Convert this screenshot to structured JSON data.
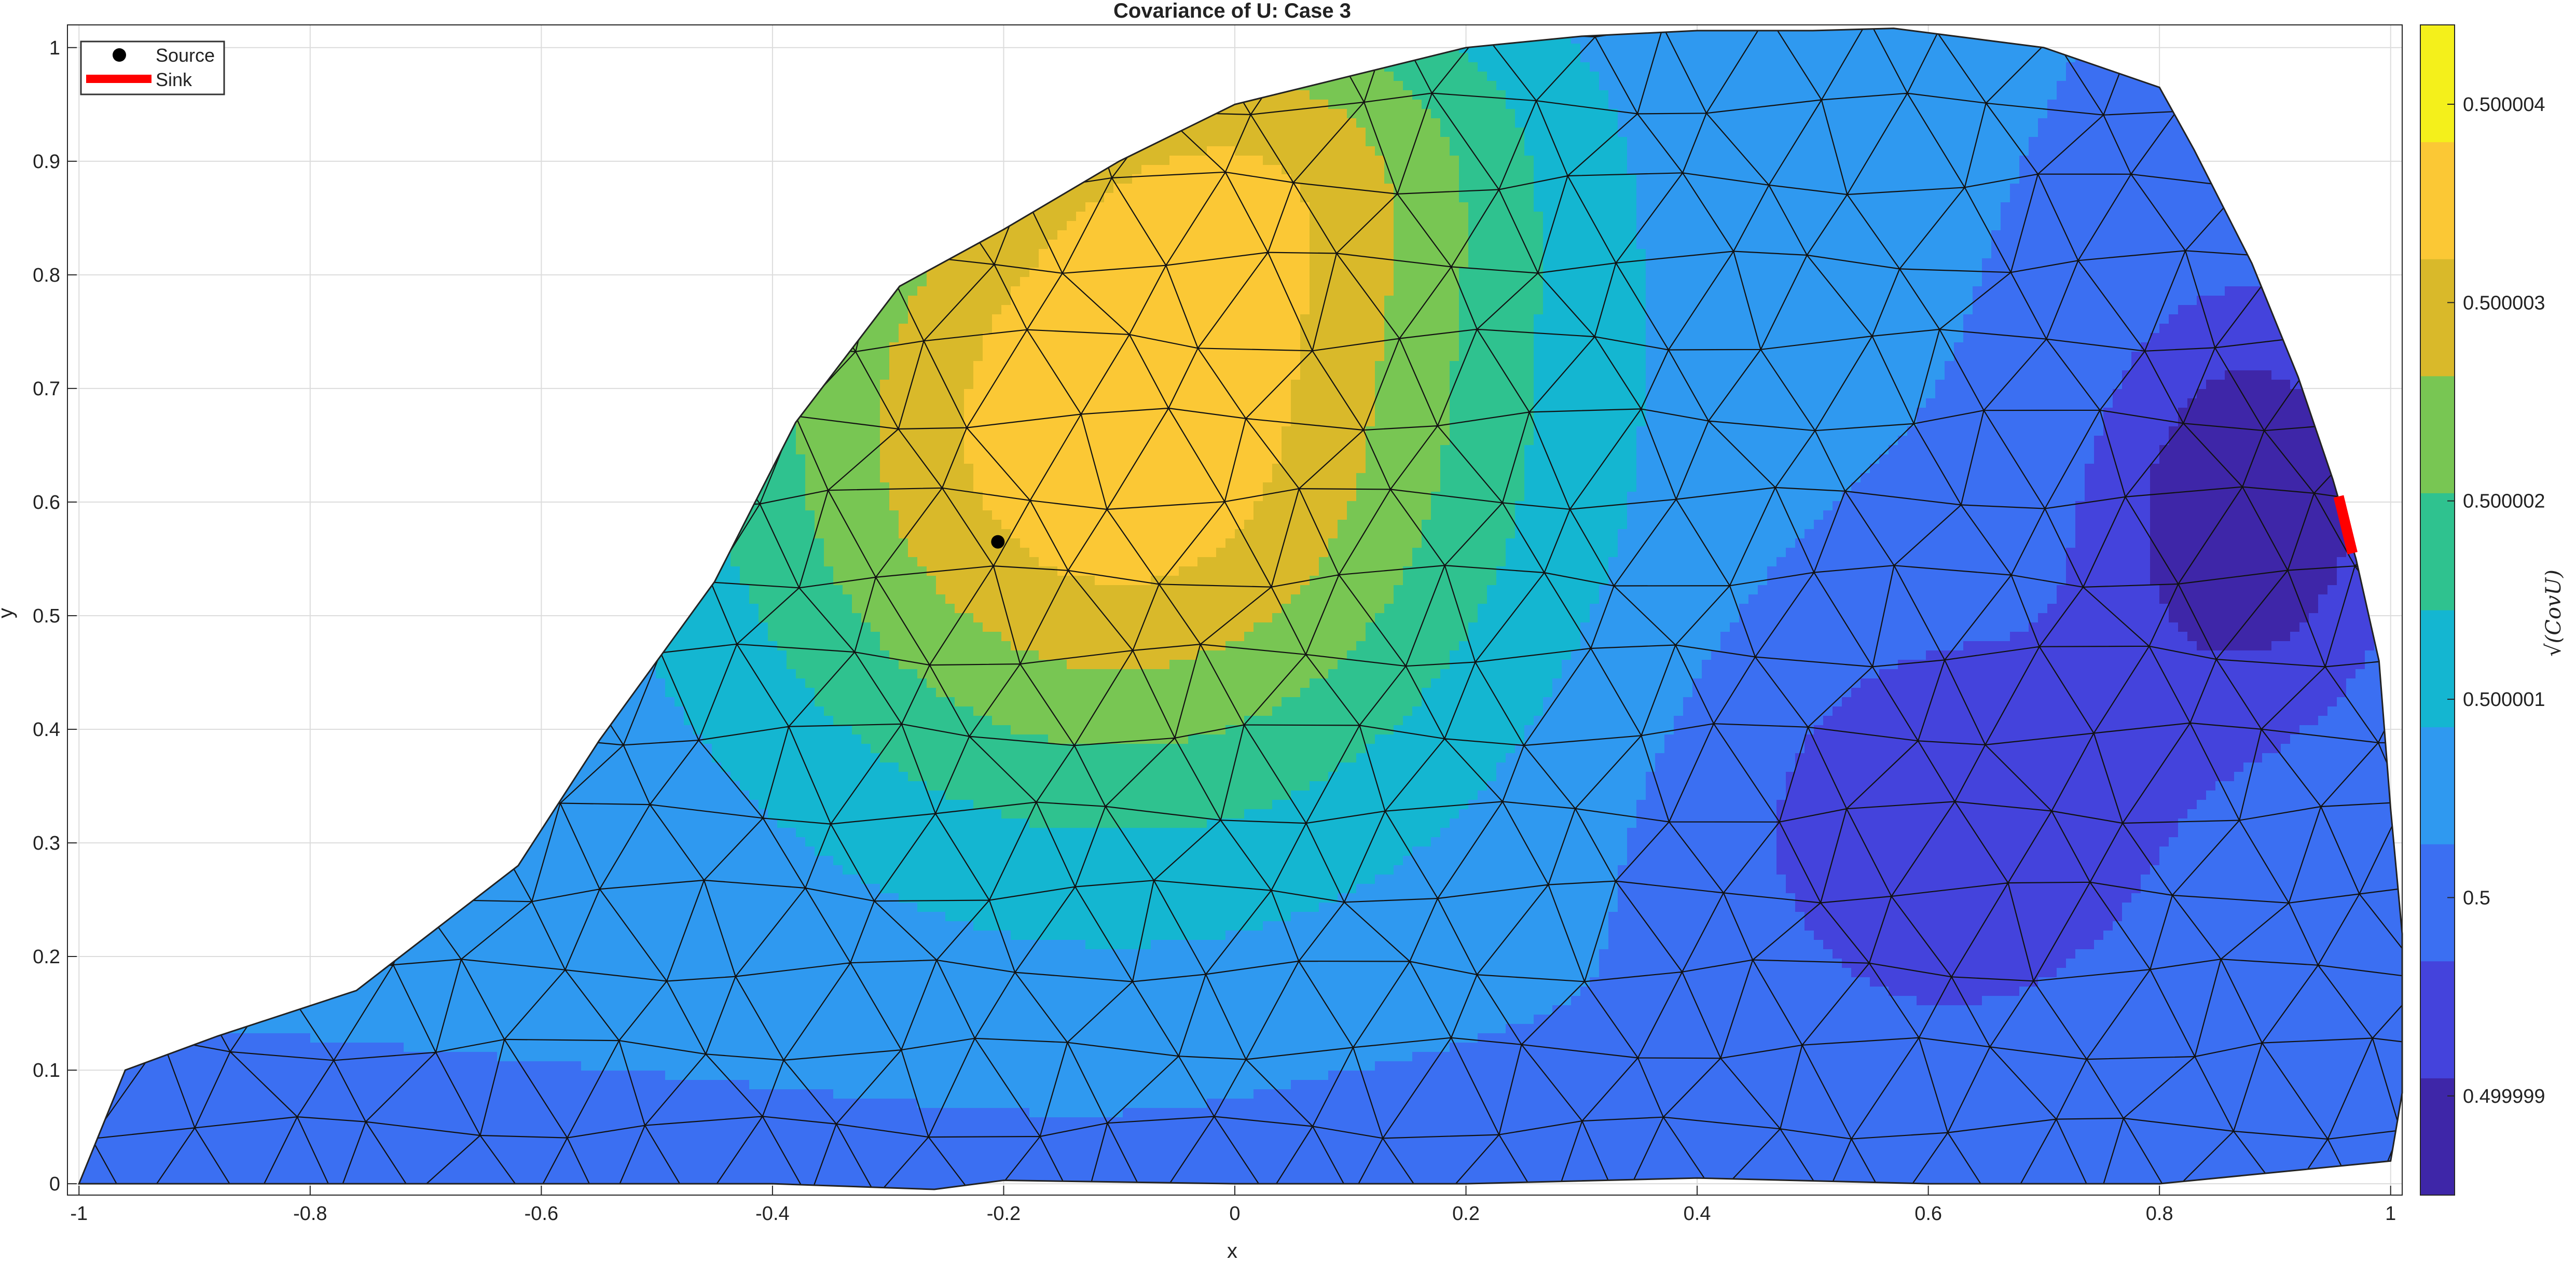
{
  "chart_data": {
    "type": "contour",
    "title": "Covariance of U: Case 3",
    "xlabel": "x",
    "ylabel": "y",
    "colorbar_label": "√(CovU)",
    "xlim": [
      -1.01,
      1.01
    ],
    "ylim": [
      -0.01,
      1.02
    ],
    "x_ticks": [
      -1,
      -0.8,
      -0.6,
      -0.4,
      -0.2,
      0,
      0.2,
      0.4,
      0.6,
      0.8,
      1
    ],
    "y_ticks": [
      0,
      0.1,
      0.2,
      0.3,
      0.4,
      0.5,
      0.6,
      0.7,
      0.8,
      0.9,
      1
    ],
    "x_tick_labels": [
      "-1",
      "-0.8",
      "-0.6",
      "-0.4",
      "-0.2",
      "0",
      "0.2",
      "0.4",
      "0.6",
      "0.8",
      "1"
    ],
    "y_tick_labels": [
      "0",
      "0.1",
      "0.2",
      "0.3",
      "0.4",
      "0.5",
      "0.6",
      "0.7",
      "0.8",
      "0.9",
      "1"
    ],
    "grid": true,
    "colorbar": {
      "ticks": [
        0.499999,
        0.5,
        0.500001,
        0.500002,
        0.500003,
        0.500004
      ],
      "tick_labels": [
        "0.499999",
        "0.5",
        "0.500001",
        "0.500002",
        "0.500003",
        "0.500004"
      ],
      "levels": 10,
      "colors": [
        "#3e26a8",
        "#4443dc",
        "#3b6ff2",
        "#2f99f0",
        "#14b6d1",
        "#2fc28f",
        "#78c653",
        "#d9b92a",
        "#fbc835",
        "#f4f01b"
      ]
    },
    "domain_boundary": [
      [
        -1.0,
        0.0
      ],
      [
        -0.96,
        0.1
      ],
      [
        -0.88,
        0.13
      ],
      [
        -0.76,
        0.17
      ],
      [
        -0.62,
        0.28
      ],
      [
        -0.55,
        0.39
      ],
      [
        -0.45,
        0.53
      ],
      [
        -0.38,
        0.67
      ],
      [
        -0.29,
        0.79
      ],
      [
        -0.2,
        0.84
      ],
      [
        -0.1,
        0.9
      ],
      [
        0.0,
        0.95
      ],
      [
        0.1,
        0.975
      ],
      [
        0.2,
        1.0
      ],
      [
        0.3,
        1.01
      ],
      [
        0.4,
        1.015
      ],
      [
        0.5,
        1.015
      ],
      [
        0.57,
        1.017
      ],
      [
        0.7,
        1.0
      ],
      [
        0.8,
        0.965
      ],
      [
        0.83,
        0.91
      ],
      [
        0.88,
        0.81
      ],
      [
        0.92,
        0.71
      ],
      [
        0.95,
        0.62
      ],
      [
        0.97,
        0.55
      ],
      [
        0.99,
        0.46
      ],
      [
        1.0,
        0.33
      ],
      [
        1.01,
        0.22
      ],
      [
        1.01,
        0.08
      ],
      [
        1.0,
        0.02
      ],
      [
        0.8,
        0.0
      ],
      [
        0.6,
        0.0
      ],
      [
        0.4,
        0.005
      ],
      [
        0.2,
        0.0
      ],
      [
        0.0,
        0.0
      ],
      [
        -0.2,
        0.003
      ],
      [
        -0.26,
        -0.005
      ],
      [
        -0.4,
        0.0
      ],
      [
        -0.6,
        0.0
      ],
      [
        -0.8,
        0.0
      ]
    ],
    "source": {
      "x": -0.205,
      "y": 0.565
    },
    "sink": {
      "x": [
        0.955,
        0.967
      ],
      "y": [
        0.605,
        0.555
      ]
    },
    "legend": {
      "placement": "top-left",
      "entries": [
        {
          "label": "Source",
          "marker": "dot",
          "color": "#000000"
        },
        {
          "label": "Sink",
          "marker": "line",
          "color": "#ff0000"
        }
      ]
    }
  }
}
